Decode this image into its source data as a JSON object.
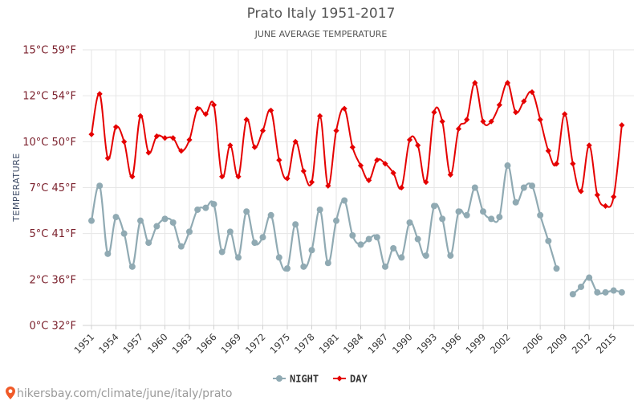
{
  "chart_data": {
    "type": "line",
    "title": "Prato Italy 1951-2017",
    "subtitle": "JUNE AVERAGE TEMPERATURE",
    "ylabel": "TEMPERATURE",
    "xlabel": "",
    "ylim": [
      0,
      15
    ],
    "xlim": [
      1951,
      2017
    ],
    "yticks": [
      {
        "value": 0,
        "label": "0°C 32°F"
      },
      {
        "value": 2.5,
        "label": "2°C 36°F"
      },
      {
        "value": 5,
        "label": "5°C 41°F"
      },
      {
        "value": 7.5,
        "label": "7°C 45°F"
      },
      {
        "value": 10,
        "label": "10°C 50°F"
      },
      {
        "value": 12.5,
        "label": "12°C 54°F"
      },
      {
        "value": 15,
        "label": "15°C 59°F"
      }
    ],
    "xticks": [
      1951,
      1954,
      1957,
      1960,
      1963,
      1966,
      1969,
      1972,
      1975,
      1978,
      1981,
      1984,
      1987,
      1990,
      1993,
      1996,
      1999,
      2002,
      2006,
      2009,
      2012,
      2015
    ],
    "grid": true,
    "legend_position": "bottom-center",
    "series": [
      {
        "name": "NIGHT",
        "color": "#90aab3",
        "marker": "circle",
        "points": [
          [
            1951,
            5.7
          ],
          [
            1952,
            7.6
          ],
          [
            1953,
            3.9
          ],
          [
            1954,
            5.9
          ],
          [
            1955,
            5.0
          ],
          [
            1956,
            3.2
          ],
          [
            1957,
            5.7
          ],
          [
            1958,
            4.5
          ],
          [
            1959,
            5.4
          ],
          [
            1960,
            5.8
          ],
          [
            1961,
            5.6
          ],
          [
            1962,
            4.3
          ],
          [
            1963,
            5.1
          ],
          [
            1964,
            6.3
          ],
          [
            1965,
            6.4
          ],
          [
            1966,
            6.6
          ],
          [
            1967,
            4.0
          ],
          [
            1968,
            5.1
          ],
          [
            1969,
            3.7
          ],
          [
            1970,
            6.2
          ],
          [
            1971,
            4.5
          ],
          [
            1972,
            4.8
          ],
          [
            1973,
            6.0
          ],
          [
            1974,
            3.7
          ],
          [
            1975,
            3.1
          ],
          [
            1976,
            5.5
          ],
          [
            1977,
            3.2
          ],
          [
            1978,
            4.1
          ],
          [
            1979,
            6.3
          ],
          [
            1980,
            3.4
          ],
          [
            1981,
            5.7
          ],
          [
            1982,
            6.8
          ],
          [
            1983,
            4.9
          ],
          [
            1984,
            4.4
          ],
          [
            1985,
            4.7
          ],
          [
            1986,
            4.8
          ],
          [
            1987,
            3.2
          ],
          [
            1988,
            4.2
          ],
          [
            1989,
            3.7
          ],
          [
            1990,
            5.6
          ],
          [
            1991,
            4.7
          ],
          [
            1992,
            3.8
          ],
          [
            1993,
            6.5
          ],
          [
            1994,
            5.8
          ],
          [
            1995,
            3.8
          ],
          [
            1996,
            6.2
          ],
          [
            1997,
            6.0
          ],
          [
            1998,
            7.5
          ],
          [
            1999,
            6.2
          ],
          [
            2000,
            5.8
          ],
          [
            2001,
            5.9
          ],
          [
            2002,
            8.7
          ],
          [
            2003,
            6.7
          ],
          [
            2004,
            7.5
          ],
          [
            2005,
            7.6
          ],
          [
            2006,
            6.0
          ],
          [
            2007,
            4.6
          ],
          [
            2008,
            3.1
          ],
          [
            2010,
            1.7
          ],
          [
            2011,
            2.1
          ],
          [
            2012,
            2.6
          ],
          [
            2013,
            1.8
          ],
          [
            2014,
            1.8
          ],
          [
            2015,
            1.9
          ],
          [
            2016,
            1.8
          ]
        ]
      },
      {
        "name": "DAY",
        "color": "#e50000",
        "marker": "diamond",
        "points": [
          [
            1951,
            10.4
          ],
          [
            1952,
            12.6
          ],
          [
            1953,
            9.1
          ],
          [
            1954,
            10.8
          ],
          [
            1955,
            10.0
          ],
          [
            1956,
            8.1
          ],
          [
            1957,
            11.4
          ],
          [
            1958,
            9.4
          ],
          [
            1959,
            10.3
          ],
          [
            1960,
            10.2
          ],
          [
            1961,
            10.2
          ],
          [
            1962,
            9.5
          ],
          [
            1963,
            10.1
          ],
          [
            1964,
            11.8
          ],
          [
            1965,
            11.5
          ],
          [
            1966,
            12.0
          ],
          [
            1967,
            8.1
          ],
          [
            1968,
            9.8
          ],
          [
            1969,
            8.1
          ],
          [
            1970,
            11.2
          ],
          [
            1971,
            9.7
          ],
          [
            1972,
            10.6
          ],
          [
            1973,
            11.7
          ],
          [
            1974,
            9.0
          ],
          [
            1975,
            8.0
          ],
          [
            1976,
            10.0
          ],
          [
            1977,
            8.4
          ],
          [
            1978,
            7.8
          ],
          [
            1979,
            11.4
          ],
          [
            1980,
            7.6
          ],
          [
            1981,
            10.6
          ],
          [
            1982,
            11.8
          ],
          [
            1983,
            9.7
          ],
          [
            1984,
            8.7
          ],
          [
            1985,
            7.9
          ],
          [
            1986,
            9.0
          ],
          [
            1987,
            8.8
          ],
          [
            1988,
            8.3
          ],
          [
            1989,
            7.5
          ],
          [
            1990,
            10.1
          ],
          [
            1991,
            9.8
          ],
          [
            1992,
            7.8
          ],
          [
            1993,
            11.6
          ],
          [
            1994,
            11.1
          ],
          [
            1995,
            8.2
          ],
          [
            1996,
            10.7
          ],
          [
            1997,
            11.2
          ],
          [
            1998,
            13.2
          ],
          [
            1999,
            11.1
          ],
          [
            2000,
            11.1
          ],
          [
            2001,
            12.0
          ],
          [
            2002,
            13.2
          ],
          [
            2003,
            11.6
          ],
          [
            2004,
            12.2
          ],
          [
            2005,
            12.7
          ],
          [
            2006,
            11.2
          ],
          [
            2007,
            9.5
          ],
          [
            2008,
            8.8
          ],
          [
            2009,
            11.5
          ],
          [
            2010,
            8.8
          ],
          [
            2011,
            7.3
          ],
          [
            2012,
            9.8
          ],
          [
            2013,
            7.1
          ],
          [
            2014,
            6.5
          ],
          [
            2015,
            7.0
          ],
          [
            2016,
            10.9
          ]
        ]
      }
    ]
  },
  "footer": {
    "source_text": "hikersbay.com/climate/june/italy/prato"
  },
  "colors": {
    "grid": "#e6e6e6",
    "axis": "#d0d0d0",
    "ytick": "#7a1f2b",
    "pin": "#f05a28"
  },
  "icons": {
    "source": "map-pin-icon"
  }
}
